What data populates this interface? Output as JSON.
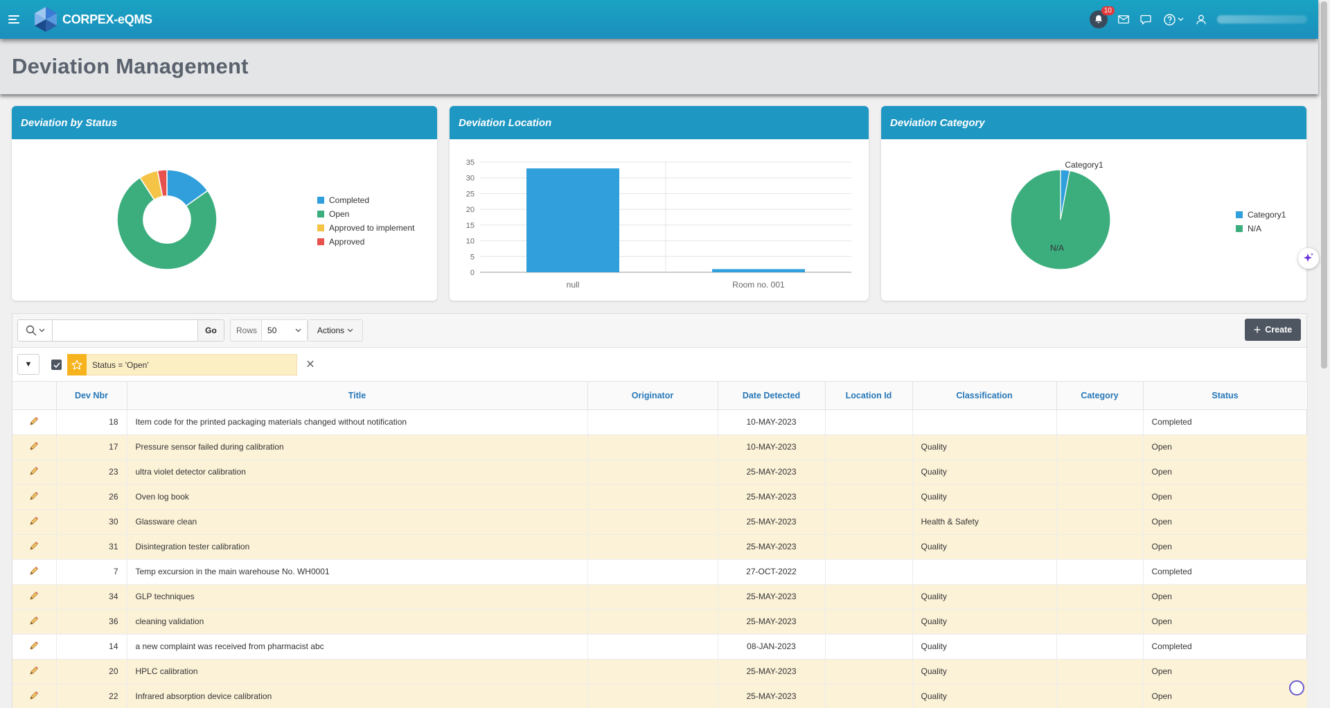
{
  "app": {
    "title": "CORPEX-eQMS",
    "notification_count": "10"
  },
  "page": {
    "title": "Deviation Management"
  },
  "charts": {
    "status": {
      "title": "Deviation by Status",
      "legend": [
        "Completed",
        "Open",
        "Approved to implement",
        "Approved"
      ],
      "colors": [
        "#309fdb",
        "#3cae7e",
        "#f5c447",
        "#e8524d"
      ]
    },
    "location": {
      "title": "Deviation Location",
      "y_ticks": [
        "35",
        "30",
        "25",
        "20",
        "15",
        "10",
        "5",
        "0"
      ],
      "categories": [
        "null",
        "Room no. 001"
      ]
    },
    "category": {
      "title": "Deviation Category",
      "slice_labels": [
        "Category1",
        "N/A"
      ],
      "legend": [
        "Category1",
        "N/A"
      ],
      "colors": [
        "#309fdb",
        "#3cae7e"
      ]
    }
  },
  "chart_data": [
    {
      "type": "pie",
      "title": "Deviation by Status",
      "categories": [
        "Completed",
        "Open",
        "Approved to implement",
        "Approved"
      ],
      "values": [
        5,
        25,
        2,
        1
      ],
      "donut": true,
      "legend": "right"
    },
    {
      "type": "bar",
      "title": "Deviation Location",
      "categories": [
        "null",
        "Room no. 001"
      ],
      "values": [
        33,
        1
      ],
      "ylim": [
        0,
        35
      ],
      "grid": true
    },
    {
      "type": "pie",
      "title": "Deviation Category",
      "categories": [
        "Category1",
        "N/A"
      ],
      "values": [
        1,
        33
      ],
      "legend": "right"
    }
  ],
  "toolbar": {
    "search_value": "",
    "go_label": "Go",
    "rows_label": "Rows",
    "rows_value": "50",
    "actions_label": "Actions",
    "create_label": "Create"
  },
  "filter": {
    "text": "Status = 'Open'"
  },
  "table": {
    "headers": [
      "Dev Nbr",
      "Title",
      "Originator",
      "Date Detected",
      "Location Id",
      "Classification",
      "Category",
      "Status"
    ],
    "rows": [
      {
        "nbr": "18",
        "title": "Item code for the printed packaging materials changed without notification",
        "originator": "",
        "date": "10-MAY-2023",
        "location": "",
        "classification": "",
        "category": "",
        "status": "Completed"
      },
      {
        "nbr": "17",
        "title": "Pressure sensor failed during calibration",
        "originator": "",
        "date": "10-MAY-2023",
        "location": "",
        "classification": "Quality",
        "category": "",
        "status": "Open"
      },
      {
        "nbr": "23",
        "title": "ultra violet detector calibration",
        "originator": "",
        "date": "25-MAY-2023",
        "location": "",
        "classification": "Quality",
        "category": "",
        "status": "Open"
      },
      {
        "nbr": "26",
        "title": "Oven log book",
        "originator": "",
        "date": "25-MAY-2023",
        "location": "",
        "classification": "Quality",
        "category": "",
        "status": "Open"
      },
      {
        "nbr": "30",
        "title": "Glassware clean",
        "originator": "",
        "date": "25-MAY-2023",
        "location": "",
        "classification": "Health & Safety",
        "category": "",
        "status": "Open"
      },
      {
        "nbr": "31",
        "title": "Disintegration tester calibration",
        "originator": "",
        "date": "25-MAY-2023",
        "location": "",
        "classification": "Quality",
        "category": "",
        "status": "Open"
      },
      {
        "nbr": "7",
        "title": "Temp excursion in the main warehouse No. WH0001",
        "originator": "",
        "date": "27-OCT-2022",
        "location": "",
        "classification": "",
        "category": "",
        "status": "Completed"
      },
      {
        "nbr": "34",
        "title": "GLP techniques",
        "originator": "",
        "date": "25-MAY-2023",
        "location": "",
        "classification": "Quality",
        "category": "",
        "status": "Open"
      },
      {
        "nbr": "36",
        "title": "cleaning validation",
        "originator": "",
        "date": "25-MAY-2023",
        "location": "",
        "classification": "Quality",
        "category": "",
        "status": "Open"
      },
      {
        "nbr": "14",
        "title": "a new complaint was received from pharmacist abc",
        "originator": "",
        "date": "08-JAN-2023",
        "location": "",
        "classification": "Quality",
        "category": "",
        "status": "Completed"
      },
      {
        "nbr": "20",
        "title": "HPLC calibration",
        "originator": "",
        "date": "25-MAY-2023",
        "location": "",
        "classification": "Quality",
        "category": "",
        "status": "Open"
      },
      {
        "nbr": "22",
        "title": "Infrared absorption device calibration",
        "originator": "",
        "date": "25-MAY-2023",
        "location": "",
        "classification": "Quality",
        "category": "",
        "status": "Open"
      }
    ]
  }
}
